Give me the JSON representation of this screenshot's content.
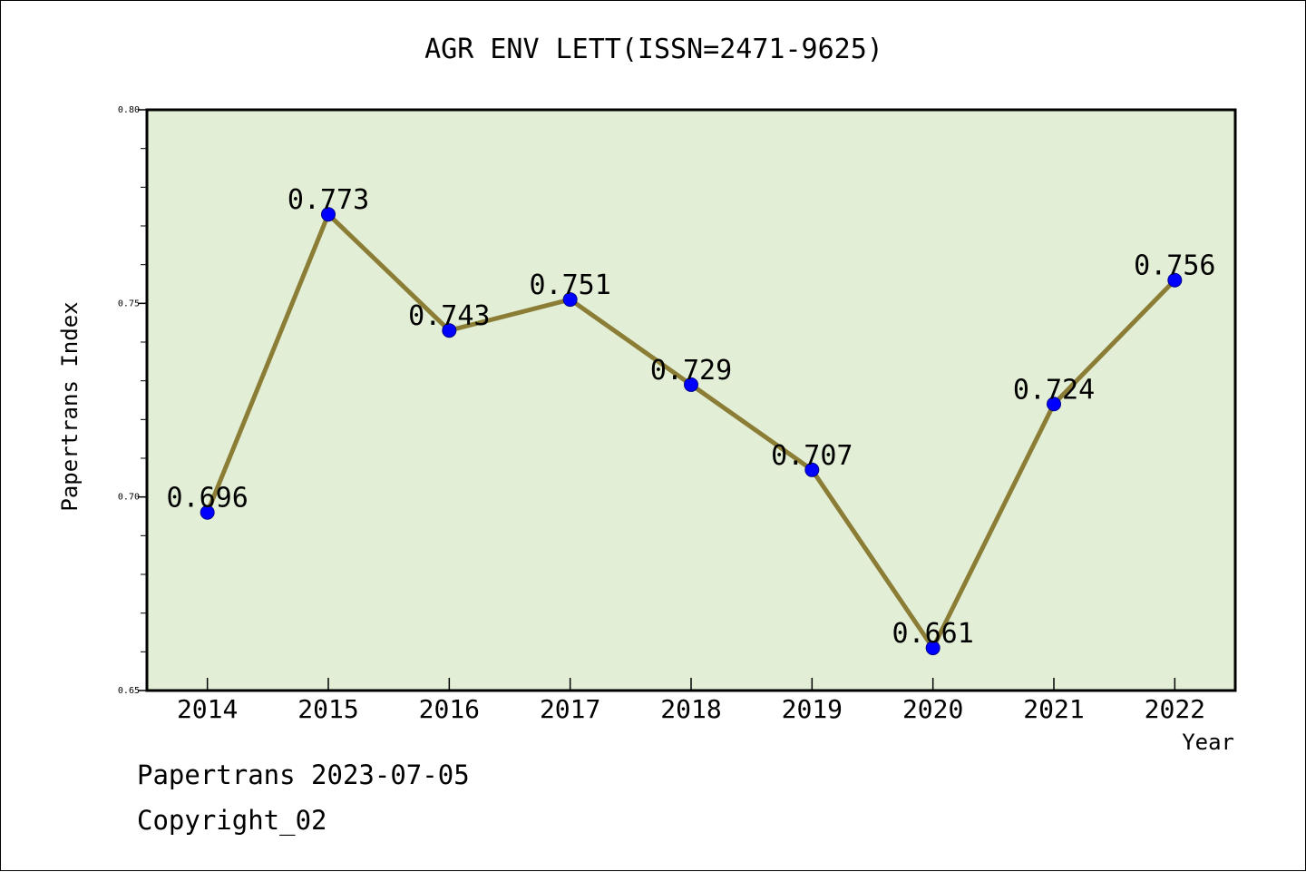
{
  "chart_data": {
    "type": "line",
    "title": "AGR ENV LETT(ISSN=2471-9625)",
    "xlabel": "Year",
    "ylabel": "Papertrans Index",
    "categories": [
      "2014",
      "2015",
      "2016",
      "2017",
      "2018",
      "2019",
      "2020",
      "2021",
      "2022"
    ],
    "series": [
      {
        "values": [
          0.696,
          0.773,
          0.743,
          0.751,
          0.729,
          0.707,
          0.661,
          0.724,
          0.756
        ]
      }
    ],
    "data_labels": [
      "0.696",
      "0.773",
      "0.743",
      "0.751",
      "0.729",
      "0.707",
      "0.661",
      "0.724",
      "0.756"
    ],
    "ylim": [
      0.65,
      0.8
    ],
    "yticks": [
      "0.65",
      "0.70",
      "0.75",
      "0.80"
    ],
    "grid": false,
    "legend": "none",
    "colors": {
      "plot_background": "#e2efd6",
      "line": "#8b7d35",
      "marker": "#0000ff"
    }
  },
  "footer": {
    "date_line": "Papertrans 2023-07-05",
    "copyright_line": "Copyright_02"
  }
}
